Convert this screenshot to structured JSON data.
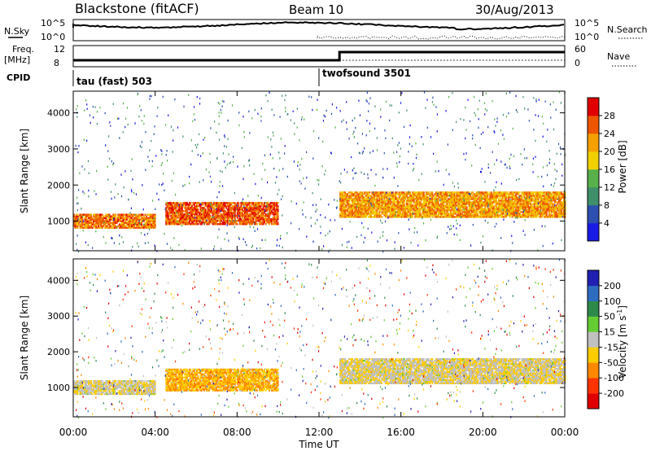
{
  "header": {
    "station": "Blackstone (fitACF)",
    "beam": "Beam 10",
    "date": "30/Aug/2013"
  },
  "top_panels": {
    "nsky_label": "N.Sky",
    "nsky_ticks": [
      "10^5",
      "10^0"
    ],
    "nsearch_label": "N.Search",
    "nsearch_ticks": [
      "10^5",
      "10^0"
    ],
    "freq_label": "Freq.",
    "freq_unit": "[MHz]",
    "freq_ticks": [
      "12",
      "8"
    ],
    "nave_label": "Nave",
    "nave_ticks": [
      "60",
      "0"
    ],
    "cpid_label": "CPID",
    "cpid_modes": [
      {
        "label": "tau (fast) 503",
        "start_hour": 0
      },
      {
        "label": "twofsound 3501",
        "start_hour": 12
      }
    ]
  },
  "time_axis": {
    "label": "Time UT",
    "ticks": [
      "00:00",
      "04:00",
      "08:00",
      "12:00",
      "16:00",
      "20:00",
      "00:00"
    ]
  },
  "power_panel": {
    "ylabel": "Slant Range [km]",
    "yticks": [
      "1000",
      "2000",
      "3000",
      "4000"
    ]
  },
  "velocity_panel": {
    "ylabel": "Slant Range [km]",
    "yticks": [
      "1000",
      "2000",
      "3000",
      "4000"
    ]
  },
  "power_scale": {
    "label": "Power [dB]",
    "ticks": [
      "4",
      "8",
      "12",
      "16",
      "20",
      "24",
      "28"
    ],
    "colors": [
      "#1a1ae6",
      "#2c4fb0",
      "#3f8f6a",
      "#58b04a",
      "#f0d000",
      "#f4a000",
      "#ee5500",
      "#e00000"
    ]
  },
  "velocity_scale": {
    "label_main": "Velocity [m s",
    "label_sup": "-1",
    "label_end": "]",
    "ticks": [
      "200",
      "100",
      "50",
      "15",
      "-15",
      "-50",
      "-100",
      "-200"
    ],
    "colors": [
      "#2020b0",
      "#2e6cc0",
      "#2e8a4a",
      "#66cc33",
      "#c0c0c0",
      "#ffcc00",
      "#ff8800",
      "#ff3300",
      "#e00000"
    ]
  },
  "chart_data": {
    "type": "heatmap",
    "x_range_hours": [
      0,
      24
    ],
    "y_range_km": [
      180,
      4600
    ],
    "echo_regions": [
      {
        "name": "Slant range band of echoes",
        "start_hour": 0.0,
        "end_hour": 4.0,
        "min_km": 800,
        "max_km": 1200,
        "power_db": 24,
        "velocity": -15
      },
      {
        "name": "Slant range band of echoes",
        "start_hour": 4.5,
        "end_hour": 10.0,
        "min_km": 900,
        "max_km": 1500,
        "power_db": 26,
        "velocity": -60
      },
      {
        "name": "Slant range band of echoes",
        "start_hour": 13.0,
        "end_hour": 24.0,
        "min_km": 1100,
        "max_km": 1800,
        "power_db": 22,
        "velocity": -15
      }
    ],
    "power_colorbar_range_db": [
      0,
      32
    ],
    "velocity_colorbar_range": [
      -200,
      200
    ]
  }
}
